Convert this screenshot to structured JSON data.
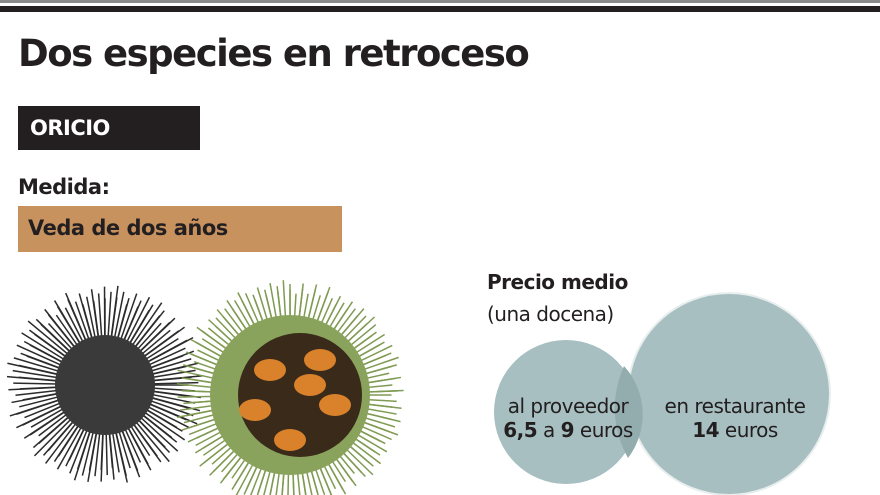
{
  "title": "Dos especies en retroceso",
  "species": "ORICIO",
  "measure_label": "Medida:",
  "measure_value": "Veda de dos años",
  "price": {
    "heading": "Precio medio",
    "subheading": "(una docena)",
    "supplier": {
      "label": "al proveedor",
      "from": "6,5",
      "sep": "a",
      "to": "9",
      "unit": "euros"
    },
    "restaurant": {
      "label": "en restaurante",
      "value": "14",
      "unit": "euros"
    }
  },
  "colors": {
    "dark": "#231f20",
    "measure_bg": "#c8925f",
    "circle": "#a7bfc1",
    "circle_overlap": "#93adaf"
  }
}
